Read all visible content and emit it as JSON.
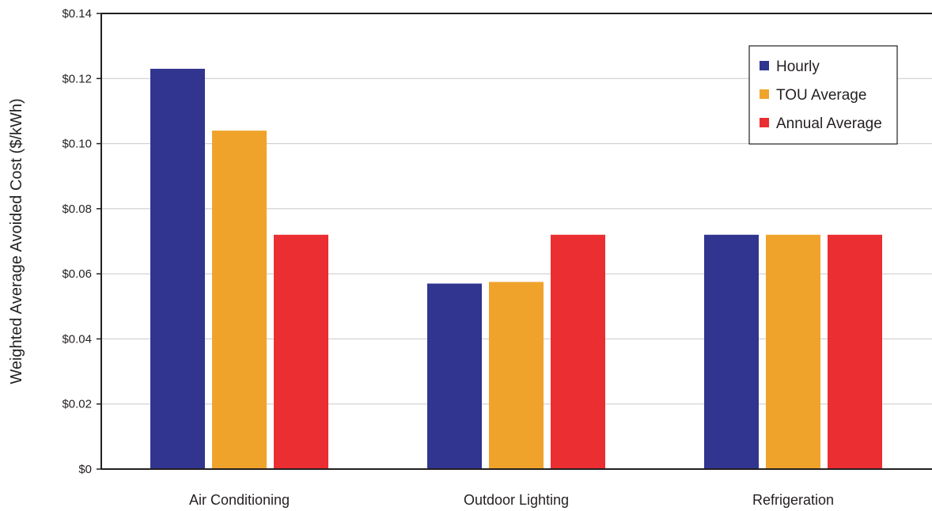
{
  "chart_data": {
    "type": "bar",
    "title": "",
    "xlabel": "",
    "ylabel": "Weighted Average Avoided Cost ($/kWh)",
    "categories": [
      "Air Conditioning",
      "Outdoor Lighting",
      "Refrigeration"
    ],
    "series": [
      {
        "name": "Hourly",
        "color": "#31358f",
        "values": [
          0.123,
          0.057,
          0.072
        ]
      },
      {
        "name": "TOU Average",
        "color": "#f0a32b",
        "values": [
          0.104,
          0.0575,
          0.072
        ]
      },
      {
        "name": "Annual Average",
        "color": "#eb2e31",
        "values": [
          0.072,
          0.072,
          0.072
        ]
      }
    ],
    "ylim": [
      0,
      0.14
    ],
    "yticks": [
      0,
      0.02,
      0.04,
      0.06,
      0.08,
      0.1,
      0.12,
      0.14
    ],
    "ytick_labels": [
      "$0",
      "$0.02",
      "$0.04",
      "$0.06",
      "$0.08",
      "$0.10",
      "$0.12",
      "$0.14"
    ],
    "grid": true,
    "legend_position": "top-right"
  }
}
